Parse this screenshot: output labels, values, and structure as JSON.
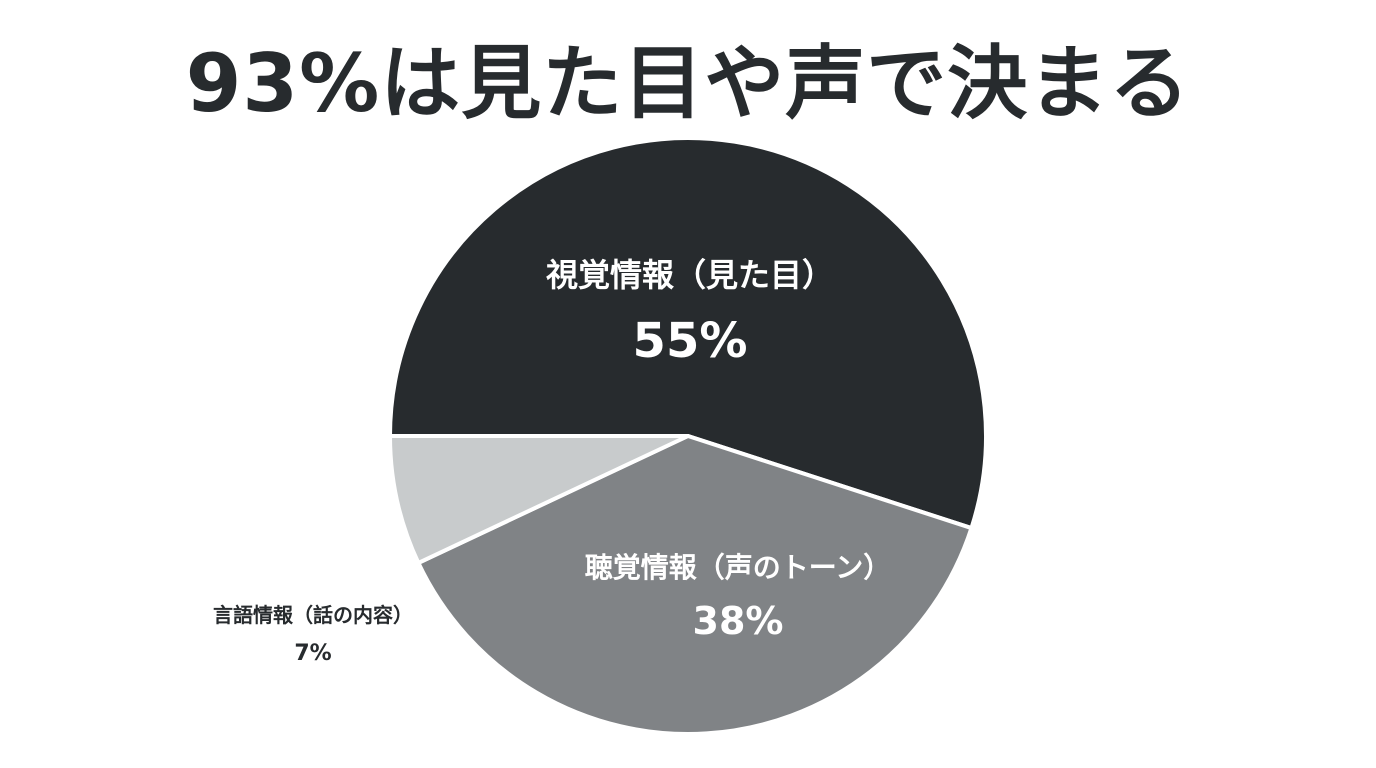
{
  "chart_data": {
    "type": "pie",
    "title": "93%は見た目や声で決まる",
    "slices": [
      {
        "label": "視覚情報（見た目）",
        "value": 55,
        "value_label": "55%",
        "color": "#272b2e",
        "text_color": "#ffffff"
      },
      {
        "label": "聴覚情報（声のトーン）",
        "value": 38,
        "value_label": "38%",
        "color": "#808386",
        "text_color": "#ffffff"
      },
      {
        "label": "言語情報（話の内容）",
        "value": 7,
        "value_label": "7%",
        "color": "#c8cbcc",
        "text_color": "#272b2e"
      }
    ],
    "legend": "none",
    "start_direction": "left",
    "direction": "clockwise"
  }
}
